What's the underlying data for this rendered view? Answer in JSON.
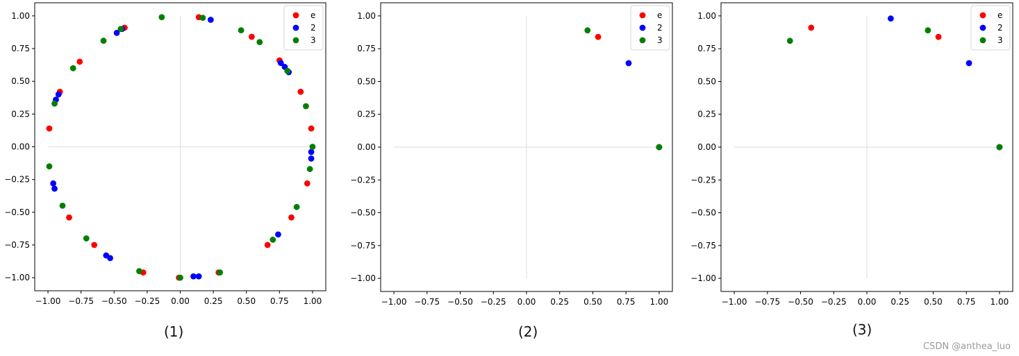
{
  "chart_data": [
    {
      "type": "scatter",
      "caption": "(1)",
      "xlim": [
        -1.1,
        1.1
      ],
      "ylim": [
        -1.1,
        1.1
      ],
      "xticks": [
        "−1.00",
        "−0.75",
        "−0.50",
        "−0.25",
        "0.00",
        "0.25",
        "0.50",
        "0.75",
        "1.00"
      ],
      "yticks": [
        "1.00",
        "0.75",
        "0.50",
        "0.25",
        "0.00",
        "−0.25",
        "−0.50",
        "−0.75",
        "−1.00"
      ],
      "xtick_values": [
        -1.0,
        -0.75,
        -0.5,
        -0.25,
        0.0,
        0.25,
        0.5,
        0.75,
        1.0
      ],
      "ytick_values": [
        1.0,
        0.75,
        0.5,
        0.25,
        0.0,
        -0.25,
        -0.5,
        -0.75,
        -1.0
      ],
      "legend_position": "top-right",
      "guides": "axes-through-origin",
      "series": [
        {
          "name": "e",
          "color": "#ff0000",
          "points": [
            [
              0.14,
              0.99
            ],
            [
              0.54,
              0.84
            ],
            [
              0.75,
              0.66
            ],
            [
              0.91,
              0.42
            ],
            [
              0.99,
              0.14
            ],
            [
              0.96,
              -0.28
            ],
            [
              0.84,
              -0.54
            ],
            [
              0.66,
              -0.75
            ],
            [
              0.29,
              -0.96
            ],
            [
              -0.01,
              -1.0
            ],
            [
              -0.28,
              -0.96
            ],
            [
              -0.65,
              -0.75
            ],
            [
              -0.84,
              -0.54
            ],
            [
              -0.99,
              0.14
            ],
            [
              -0.91,
              0.42
            ],
            [
              -0.76,
              0.65
            ],
            [
              -0.42,
              0.91
            ]
          ]
        },
        {
          "name": "2",
          "color": "#0000ff",
          "points": [
            [
              0.23,
              0.97
            ],
            [
              0.76,
              0.64
            ],
            [
              0.79,
              0.61
            ],
            [
              0.82,
              0.57
            ],
            [
              0.99,
              -0.04
            ],
            [
              0.99,
              -0.09
            ],
            [
              0.74,
              -0.67
            ],
            [
              0.14,
              -0.99
            ],
            [
              0.1,
              -0.99
            ],
            [
              -0.53,
              -0.85
            ],
            [
              -0.56,
              -0.83
            ],
            [
              -0.95,
              -0.32
            ],
            [
              -0.96,
              -0.28
            ],
            [
              -0.92,
              0.4
            ],
            [
              -0.94,
              0.36
            ],
            [
              -0.48,
              0.87
            ],
            [
              -0.44,
              0.9
            ]
          ]
        },
        {
          "name": "3",
          "color": "#008000",
          "points": [
            [
              -0.14,
              0.99
            ],
            [
              0.17,
              0.985
            ],
            [
              0.46,
              0.89
            ],
            [
              0.6,
              0.8
            ],
            [
              0.81,
              0.58
            ],
            [
              0.95,
              0.31
            ],
            [
              1.0,
              0.0
            ],
            [
              0.98,
              -0.17
            ],
            [
              0.88,
              -0.46
            ],
            [
              0.7,
              -0.71
            ],
            [
              0.3,
              -0.96
            ],
            [
              0.0,
              -1.0
            ],
            [
              -0.31,
              -0.95
            ],
            [
              -0.71,
              -0.7
            ],
            [
              -0.89,
              -0.45
            ],
            [
              -0.99,
              -0.15
            ],
            [
              -0.95,
              0.33
            ],
            [
              -0.81,
              0.6
            ],
            [
              -0.58,
              0.81
            ],
            [
              -0.45,
              0.9
            ]
          ]
        }
      ]
    },
    {
      "type": "scatter",
      "caption": "(2)",
      "xlim": [
        -1.1,
        1.1
      ],
      "ylim": [
        -1.1,
        1.1
      ],
      "xticks": [
        "−1.00",
        "−0.75",
        "−0.50",
        "−0.25",
        "0.00",
        "0.25",
        "0.50",
        "0.75",
        "1.00"
      ],
      "yticks": [
        "1.00",
        "0.75",
        "0.50",
        "0.25",
        "0.00",
        "−0.25",
        "−0.50",
        "−0.75",
        "−1.00"
      ],
      "xtick_values": [
        -1.0,
        -0.75,
        -0.5,
        -0.25,
        0.0,
        0.25,
        0.5,
        0.75,
        1.0
      ],
      "ytick_values": [
        1.0,
        0.75,
        0.5,
        0.25,
        0.0,
        -0.25,
        -0.5,
        -0.75,
        -1.0
      ],
      "legend_position": "top-right",
      "guides": "axes-through-origin",
      "series": [
        {
          "name": "e",
          "color": "#ff0000",
          "points": [
            [
              0.54,
              0.84
            ],
            [
              1.0,
              0.0
            ]
          ]
        },
        {
          "name": "2",
          "color": "#0000ff",
          "points": [
            [
              0.77,
              0.64
            ],
            [
              1.0,
              0.0
            ]
          ]
        },
        {
          "name": "3",
          "color": "#008000",
          "points": [
            [
              0.46,
              0.89
            ],
            [
              1.0,
              0.0
            ]
          ]
        }
      ]
    },
    {
      "type": "scatter",
      "caption": "(3)",
      "xlim": [
        -1.1,
        1.1
      ],
      "ylim": [
        -1.1,
        1.1
      ],
      "xticks": [
        "−1.00",
        "−0.75",
        "−0.50",
        "−0.25",
        "0.00",
        "0.25",
        "0.50",
        "0.75",
        "1.00"
      ],
      "yticks": [
        "1.00",
        "0.75",
        "0.50",
        "0.25",
        "0.00",
        "−0.25",
        "−0.50",
        "−0.75",
        "−1.00"
      ],
      "xtick_values": [
        -1.0,
        -0.75,
        -0.5,
        -0.25,
        0.0,
        0.25,
        0.5,
        0.75,
        1.0
      ],
      "ytick_values": [
        1.0,
        0.75,
        0.5,
        0.25,
        0.0,
        -0.25,
        -0.5,
        -0.75,
        -1.0
      ],
      "legend_position": "top-right",
      "guides": "axes-through-origin",
      "series": [
        {
          "name": "e",
          "color": "#ff0000",
          "points": [
            [
              -0.42,
              0.91
            ],
            [
              0.54,
              0.84
            ],
            [
              1.0,
              0.0
            ]
          ]
        },
        {
          "name": "2",
          "color": "#0000ff",
          "points": [
            [
              0.18,
              0.98
            ],
            [
              0.77,
              0.64
            ],
            [
              1.0,
              0.0
            ]
          ]
        },
        {
          "name": "3",
          "color": "#008000",
          "points": [
            [
              -0.58,
              0.81
            ],
            [
              0.46,
              0.89
            ],
            [
              1.0,
              0.0
            ]
          ]
        }
      ]
    }
  ],
  "watermark": "CSDN @anthea_luo"
}
